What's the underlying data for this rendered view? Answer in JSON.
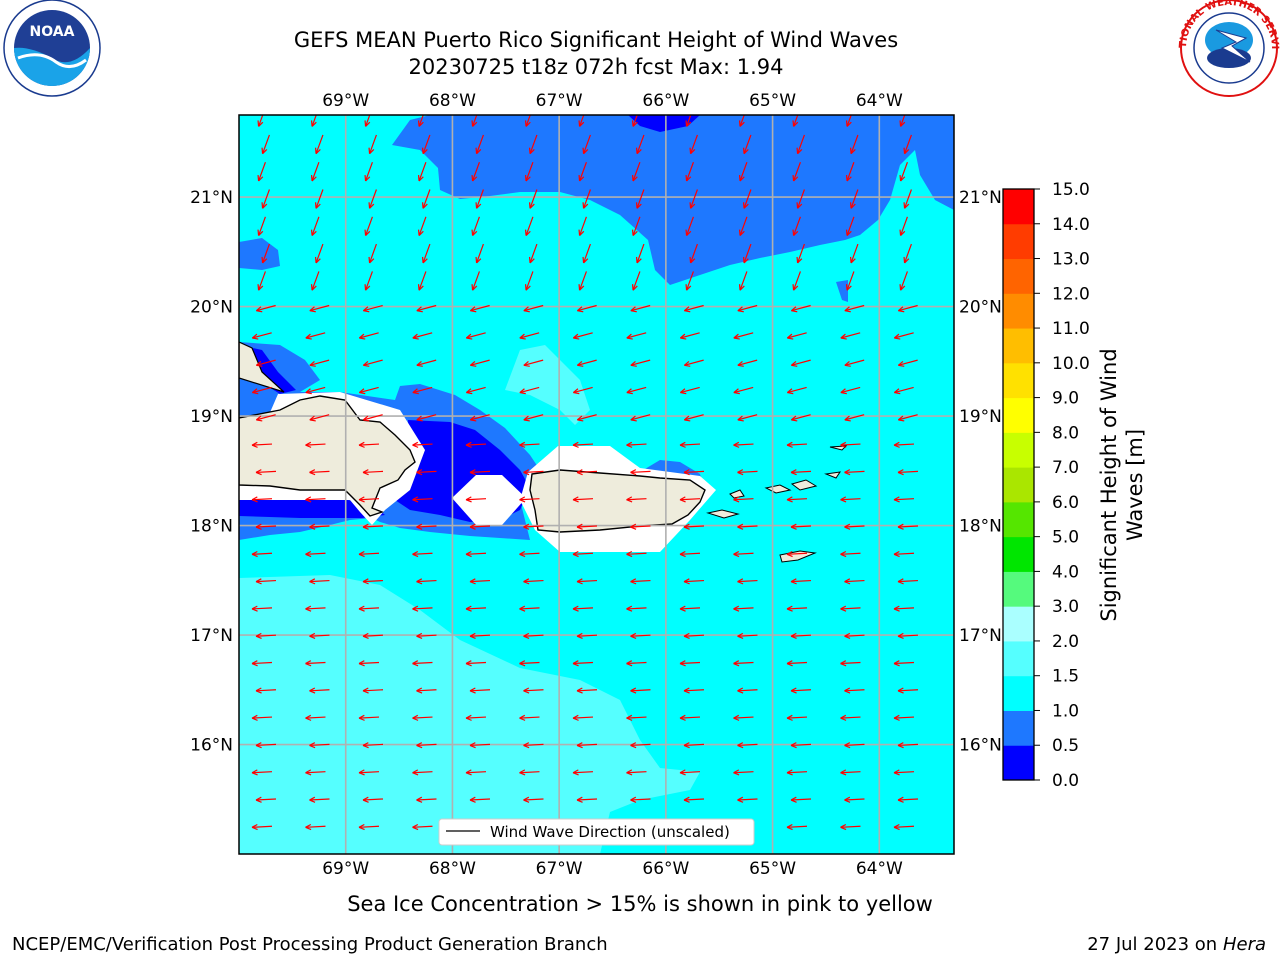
{
  "title": {
    "line1": "GEFS MEAN Puerto Rico Significant Height of Wind Waves",
    "line2": "20230725 t18z 072h fcst   Max: 1.94"
  },
  "logos": {
    "left": {
      "name": "noaa-logo",
      "text": "NOAA",
      "ring_text": "NATIONAL OCEANIC AND ATMOSPHERIC ADMINISTRATION · U.S. DEPARTMENT OF COMMERCE"
    },
    "right": {
      "name": "nws-logo",
      "ring_text": "NATIONAL WEATHER SERVICE"
    }
  },
  "map": {
    "lon_labels": [
      "69°W",
      "68°W",
      "67°W",
      "66°W",
      "65°W",
      "64°W"
    ],
    "lat_labels": [
      "21°N",
      "20°N",
      "19°N",
      "18°N",
      "17°N",
      "16°N"
    ],
    "lon_range": [
      -70.0,
      -63.3
    ],
    "lat_range": [
      15.0,
      21.75
    ],
    "grid": true,
    "land_color": "#eeecdc",
    "arrow_color": "#ff0000",
    "legend_label": "Wind Wave Direction (unscaled)",
    "legend_position": "lower-center"
  },
  "colorbar": {
    "label": "Significant Height of Wind Waves [m]",
    "label_line1": "Significant Height of Wind",
    "label_line2": "Waves [m]",
    "levels": [
      "0.0",
      "0.5",
      "1.0",
      "1.5",
      "2.0",
      "3.0",
      "4.0",
      "5.0",
      "6.0",
      "7.0",
      "8.0",
      "9.0",
      "10.0",
      "11.0",
      "12.0",
      "13.0",
      "14.0",
      "15.0"
    ],
    "colors": [
      "#0000ff",
      "#1e78ff",
      "#00ffff",
      "#55ffff",
      "#aaffff",
      "#55fa7d",
      "#00e600",
      "#55e600",
      "#aae600",
      "#c8ff00",
      "#ffff00",
      "#ffe100",
      "#ffbe00",
      "#ff8c00",
      "#ff6400",
      "#ff3c00",
      "#ff0000"
    ]
  },
  "sea_ice_note": "Sea Ice Concentration > 15% is shown in pink to yellow",
  "footer": {
    "left": "NCEP/EMC/Verification Post Processing Product Generation Branch",
    "right_date": "27 Jul 2023 on ",
    "right_host": "Hera"
  }
}
